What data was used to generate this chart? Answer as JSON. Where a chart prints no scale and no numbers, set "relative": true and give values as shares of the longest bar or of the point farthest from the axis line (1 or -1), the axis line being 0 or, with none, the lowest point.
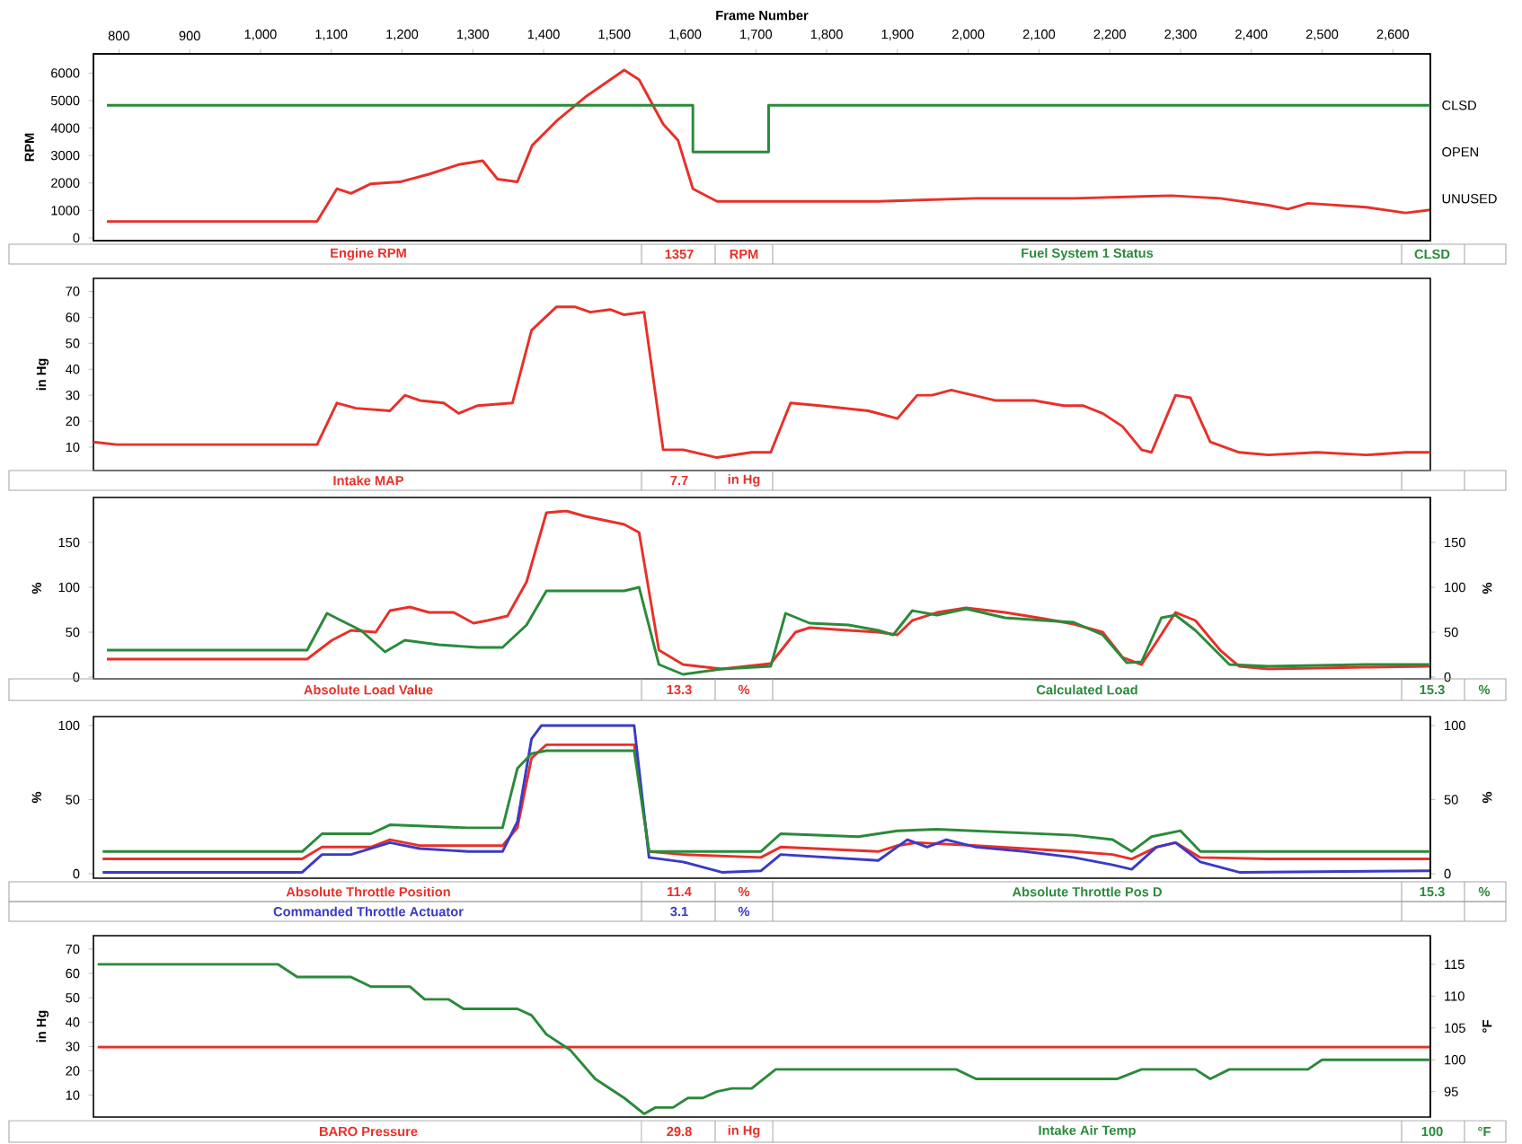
{
  "chart_data": [
    {
      "type": "line",
      "xlabel": "Frame Number",
      "ylabel": "RPM",
      "legend": "bottom",
      "xlim": [
        764,
        2653
      ],
      "ylim": [
        -100,
        6700
      ],
      "xticks": [
        800,
        900,
        {
          "value": 1000,
          "label": "1,000"
        },
        {
          "value": 1100,
          "label": "1,100"
        },
        {
          "value": 1200,
          "label": "1,200"
        },
        {
          "value": 1300,
          "label": "1,300"
        },
        {
          "value": 1400,
          "label": "1,400"
        },
        {
          "value": 1500,
          "label": "1,500"
        },
        {
          "value": 1600,
          "label": "1,600"
        },
        {
          "value": 1700,
          "label": "1,700"
        },
        {
          "value": 1800,
          "label": "1,800"
        },
        {
          "value": 1900,
          "label": "1,900"
        },
        {
          "value": 2000,
          "label": "2,000"
        },
        {
          "value": 2100,
          "label": "2,100"
        },
        {
          "value": 2200,
          "label": "2,200"
        },
        {
          "value": 2300,
          "label": "2,300"
        },
        {
          "value": 2400,
          "label": "2,400"
        },
        {
          "value": 2500,
          "label": "2,500"
        },
        {
          "value": 2600,
          "label": "2,600"
        }
      ],
      "yticks": [
        0,
        1000,
        2000,
        3000,
        4000,
        5000,
        6000
      ],
      "annotations": [
        "1357",
        "RPM"
      ],
      "series": [
        {
          "name": "Engine RPM",
          "color": "#e8302a",
          "x": [
            783,
            1080,
            1108,
            1128,
            1156,
            1197,
            1238,
            1280,
            1314,
            1335,
            1363,
            1384,
            1418,
            1459,
            1514,
            1535,
            1569,
            1590,
            1611,
            1645,
            1680,
            1873,
            2011,
            2149,
            2287,
            2356,
            2424,
            2452,
            2480,
            2562,
            2618,
            2653
          ],
          "values": [
            600,
            600,
            1790,
            1620,
            1970,
            2040,
            2320,
            2670,
            2810,
            2140,
            2040,
            3370,
            4250,
            5130,
            6110,
            5760,
            4140,
            3550,
            1790,
            1330,
            1330,
            1330,
            1440,
            1440,
            1540,
            1440,
            1190,
            1050,
            1260,
            1120,
            910,
            1020
          ]
        }
      ]
    },
    {
      "type": "line",
      "relative": true,
      "tick_labels": false,
      "legend": "bottom",
      "xlim": [
        764,
        2653
      ],
      "annotations": [
        "CLSD",
        "CLSD",
        "OPEN",
        "UNUSED"
      ],
      "series": [
        {
          "name": "Fuel System 1 Status",
          "color": "#2a8a3a",
          "axis": "y2",
          "x": [
            783,
            1611,
            1611,
            1718,
            1718,
            2653
          ],
          "values": [
            1,
            1,
            0,
            0,
            1,
            1
          ]
        }
      ]
    },
    {
      "type": "line",
      "ylabel": "in Hg",
      "legend": "bottom",
      "tick_labels": "y",
      "xlim": [
        764,
        2653
      ],
      "ylim": [
        1,
        75
      ],
      "yticks": [
        10,
        20,
        30,
        40,
        50,
        60,
        70
      ],
      "annotations": [
        "7.7",
        "in Hg"
      ],
      "series": [
        {
          "name": "Intake MAP",
          "color": "#e8302a",
          "x": [
            764,
            797,
            1080,
            1108,
            1135,
            1183,
            1204,
            1225,
            1259,
            1280,
            1307,
            1356,
            1383,
            1418,
            1445,
            1466,
            1494,
            1514,
            1542,
            1569,
            1597,
            1645,
            1694,
            1721,
            1749,
            1790,
            1859,
            1900,
            1928,
            1949,
            1976,
            2038,
            2093,
            2135,
            2162,
            2190,
            2218,
            2245,
            2259,
            2293,
            2314,
            2342,
            2383,
            2424,
            2493,
            2562,
            2618,
            2653
          ],
          "values": [
            12,
            11,
            11,
            27,
            25,
            24,
            30,
            28,
            27,
            23,
            26,
            27,
            55,
            64,
            64,
            62,
            63,
            61,
            62,
            9,
            9,
            6,
            8,
            8,
            27,
            26,
            24,
            21,
            30,
            30,
            32,
            28,
            28,
            26,
            26,
            23,
            18,
            9,
            8,
            30,
            29,
            12,
            8,
            7,
            8,
            7,
            8,
            8
          ]
        }
      ]
    },
    {
      "type": "line",
      "ylabel": "%",
      "y2label": "%",
      "legend": "bottom",
      "tick_labels": "y",
      "xlim": [
        764,
        2653
      ],
      "ylim": [
        -2,
        200
      ],
      "yticks": [
        0,
        50,
        100,
        150
      ],
      "y2lim": [
        -2,
        200
      ],
      "y2ticks": [
        0,
        50,
        100,
        150
      ],
      "annotations": [
        "13.3",
        "%",
        "15.3",
        "%"
      ],
      "series": [
        {
          "name": "Absolute Load Value",
          "color": "#e8302a",
          "x": [
            783,
            1066,
            1101,
            1128,
            1163,
            1183,
            1211,
            1238,
            1273,
            1301,
            1321,
            1349,
            1376,
            1404,
            1432,
            1459,
            1514,
            1535,
            1563,
            1597,
            1652,
            1721,
            1756,
            1776,
            1831,
            1873,
            1900,
            1921,
            1956,
            1997,
            2052,
            2107,
            2149,
            2190,
            2218,
            2245,
            2266,
            2293,
            2321,
            2356,
            2383,
            2424,
            2562,
            2653
          ],
          "values": [
            20,
            20,
            41,
            52,
            50,
            74,
            78,
            72,
            72,
            60,
            63,
            68,
            106,
            183,
            185,
            179,
            170,
            161,
            30,
            14,
            9,
            15,
            50,
            55,
            52,
            50,
            47,
            63,
            72,
            77,
            72,
            65,
            59,
            50,
            22,
            14,
            39,
            72,
            63,
            30,
            12,
            9,
            11,
            12
          ]
        },
        {
          "name": "Calculated Load",
          "color": "#2a8a3a",
          "axis": "y2",
          "x": [
            783,
            1066,
            1094,
            1114,
            1142,
            1176,
            1204,
            1252,
            1307,
            1342,
            1376,
            1404,
            1459,
            1514,
            1535,
            1563,
            1597,
            1652,
            1721,
            1742,
            1776,
            1831,
            1873,
            1894,
            1921,
            1956,
            1997,
            2052,
            2107,
            2149,
            2190,
            2224,
            2245,
            2273,
            2293,
            2321,
            2369,
            2424,
            2562,
            2653
          ],
          "values": [
            30,
            30,
            71,
            63,
            52,
            28,
            41,
            36,
            33,
            33,
            58,
            96,
            96,
            96,
            100,
            14,
            3,
            9,
            12,
            71,
            60,
            58,
            52,
            47,
            74,
            69,
            76,
            66,
            63,
            61,
            47,
            16,
            17,
            66,
            69,
            52,
            14,
            12,
            14,
            14
          ]
        }
      ]
    },
    {
      "type": "line",
      "ylabel": "%",
      "y2label": "%",
      "legend": "bottom",
      "tick_labels": "y",
      "xlim": [
        764,
        2653
      ],
      "ylim": [
        -3,
        106
      ],
      "yticks": [
        0,
        50,
        100
      ],
      "y2lim": [
        -3,
        106
      ],
      "y2ticks": [
        0,
        50,
        100
      ],
      "annotations": [
        "11.4",
        "%",
        "3.1",
        "%",
        "15.3",
        "%"
      ],
      "series": [
        {
          "name": "Absolute Throttle Position",
          "color": "#e8302a",
          "x": [
            777,
            1059,
            1087,
            1156,
            1183,
            1225,
            1342,
            1363,
            1383,
            1404,
            1528,
            1549,
            1597,
            1707,
            1735,
            1873,
            1900,
            1928,
            2011,
            2080,
            2149,
            2204,
            2231,
            2266,
            2293,
            2328,
            2424,
            2653
          ],
          "values": [
            10,
            10,
            18,
            18,
            23,
            19,
            19,
            31,
            78,
            87,
            87,
            15,
            13,
            11,
            18,
            15,
            19,
            21,
            19,
            17,
            15,
            13,
            10,
            18,
            21,
            11,
            10,
            10
          ]
        },
        {
          "name": "Commanded Throttle Actuator",
          "color": "#3a3ac8",
          "x": [
            777,
            1059,
            1087,
            1128,
            1183,
            1225,
            1294,
            1342,
            1363,
            1383,
            1397,
            1528,
            1549,
            1597,
            1652,
            1707,
            1735,
            1873,
            1914,
            1942,
            1969,
            2011,
            2080,
            2149,
            2204,
            2231,
            2266,
            2293,
            2328,
            2383,
            2653
          ],
          "values": [
            1,
            1,
            13,
            13,
            21,
            17,
            15,
            15,
            35,
            91,
            100,
            100,
            11,
            8,
            1,
            2,
            13,
            9,
            23,
            18,
            23,
            18,
            15,
            11,
            6,
            3,
            18,
            21,
            8,
            1,
            2
          ]
        },
        {
          "name": "Absolute Throttle Pos D",
          "color": "#2a8a3a",
          "axis": "y2",
          "x": [
            777,
            1059,
            1087,
            1156,
            1183,
            1294,
            1342,
            1363,
            1383,
            1404,
            1528,
            1549,
            1707,
            1735,
            1845,
            1900,
            1956,
            2149,
            2204,
            2231,
            2259,
            2300,
            2328,
            2424,
            2653
          ],
          "values": [
            15,
            15,
            27,
            27,
            33,
            31,
            31,
            71,
            81,
            83,
            83,
            15,
            15,
            27,
            25,
            29,
            30,
            26,
            23,
            15,
            25,
            29,
            15,
            15,
            15
          ]
        }
      ]
    },
    {
      "type": "line",
      "ylabel": "in Hg",
      "y2label": "°F",
      "legend": "bottom",
      "tick_labels": "y",
      "xlim": [
        764,
        2653
      ],
      "ylim": [
        1,
        75.5
      ],
      "yticks": [
        10,
        20,
        30,
        40,
        50,
        60,
        70
      ],
      "y2lim": [
        91,
        119.5
      ],
      "y2ticks": [
        95,
        100,
        105,
        110,
        115
      ],
      "annotations": [
        "29.8",
        "in Hg",
        "100",
        "°F"
      ],
      "series": [
        {
          "name": "BARO Pressure",
          "color": "#e8302a",
          "x": [
            770,
            2653
          ],
          "values": [
            29.8,
            29.8
          ]
        },
        {
          "name": "Intake Air Temp",
          "color": "#2a8a3a",
          "axis": "y2",
          "x": [
            770,
            1025,
            1052,
            1128,
            1156,
            1211,
            1232,
            1266,
            1287,
            1363,
            1383,
            1404,
            1438,
            1473,
            1514,
            1542,
            1558,
            1583,
            1604,
            1625,
            1645,
            1666,
            1694,
            1728,
            1804,
            1983,
            2011,
            2080,
            2211,
            2245,
            2321,
            2342,
            2369,
            2480,
            2500,
            2562,
            2653
          ],
          "values": [
            115,
            115,
            113,
            113,
            111.5,
            111.5,
            109.5,
            109.5,
            108,
            108,
            107,
            104,
            101.5,
            97,
            94,
            91.5,
            92.5,
            92.5,
            94,
            94,
            95,
            95.5,
            95.5,
            98.5,
            98.5,
            98.5,
            97,
            97,
            97,
            98.5,
            98.5,
            97,
            98.5,
            98.5,
            100,
            100,
            100
          ]
        }
      ]
    }
  ]
}
